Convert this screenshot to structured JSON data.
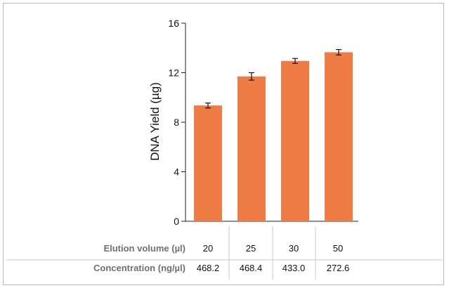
{
  "chart_data": {
    "type": "bar",
    "ylabel": "DNA Yield (µg)",
    "ylim": [
      0,
      16
    ],
    "yticks": [
      0,
      4,
      8,
      12,
      16
    ],
    "categories": [
      "20",
      "25",
      "30",
      "50"
    ],
    "values": [
      9.35,
      11.7,
      12.95,
      13.65
    ],
    "errors": [
      0.2,
      0.3,
      0.2,
      0.22
    ],
    "bar_color": "#f07c45",
    "grid": false
  },
  "table": {
    "rows": [
      {
        "header": "Elution volume (µl)",
        "cells": [
          "20",
          "25",
          "30",
          "50"
        ]
      },
      {
        "header": "Concentration (ng/µl)",
        "cells": [
          "468.2",
          "468.4",
          "433.0",
          "272.6"
        ]
      }
    ]
  }
}
